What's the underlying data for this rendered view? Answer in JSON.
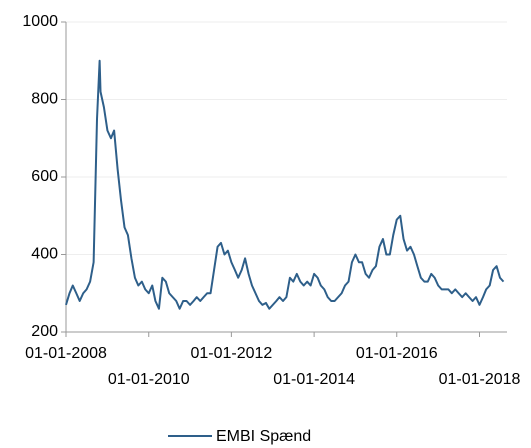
{
  "chart_data": {
    "type": "line",
    "series": [
      {
        "name": "EMBI Spænd",
        "color": "#2e5f8a",
        "x": [
          "2008-01-01",
          "2008-02-01",
          "2008-03-01",
          "2008-04-01",
          "2008-05-01",
          "2008-06-01",
          "2008-07-01",
          "2008-08-01",
          "2008-09-01",
          "2008-10-01",
          "2008-10-24",
          "2008-11-01",
          "2008-12-01",
          "2009-01-01",
          "2009-02-01",
          "2009-03-01",
          "2009-04-01",
          "2009-05-01",
          "2009-06-01",
          "2009-07-01",
          "2009-08-01",
          "2009-09-01",
          "2009-10-01",
          "2009-11-01",
          "2009-12-01",
          "2010-01-01",
          "2010-02-01",
          "2010-03-01",
          "2010-04-01",
          "2010-05-01",
          "2010-06-01",
          "2010-07-01",
          "2010-08-01",
          "2010-09-01",
          "2010-10-01",
          "2010-11-01",
          "2010-12-01",
          "2011-01-01",
          "2011-02-01",
          "2011-03-01",
          "2011-04-01",
          "2011-05-01",
          "2011-06-01",
          "2011-07-01",
          "2011-08-01",
          "2011-09-01",
          "2011-10-01",
          "2011-11-01",
          "2011-12-01",
          "2012-01-01",
          "2012-02-01",
          "2012-03-01",
          "2012-04-01",
          "2012-05-01",
          "2012-06-01",
          "2012-07-01",
          "2012-08-01",
          "2012-09-01",
          "2012-10-01",
          "2012-11-01",
          "2012-12-01",
          "2013-01-01",
          "2013-02-01",
          "2013-03-01",
          "2013-04-01",
          "2013-05-01",
          "2013-06-01",
          "2013-07-01",
          "2013-08-01",
          "2013-09-01",
          "2013-10-01",
          "2013-11-01",
          "2013-12-01",
          "2014-01-01",
          "2014-02-01",
          "2014-03-01",
          "2014-04-01",
          "2014-05-01",
          "2014-06-01",
          "2014-07-01",
          "2014-08-01",
          "2014-09-01",
          "2014-10-01",
          "2014-11-01",
          "2014-12-01",
          "2015-01-01",
          "2015-02-01",
          "2015-03-01",
          "2015-04-01",
          "2015-05-01",
          "2015-06-01",
          "2015-07-01",
          "2015-08-01",
          "2015-09-01",
          "2015-10-01",
          "2015-11-01",
          "2015-12-01",
          "2016-01-01",
          "2016-02-01",
          "2016-03-01",
          "2016-04-01",
          "2016-05-01",
          "2016-06-01",
          "2016-07-01",
          "2016-08-01",
          "2016-09-01",
          "2016-10-01",
          "2016-11-01",
          "2016-12-01",
          "2017-01-01",
          "2017-02-01",
          "2017-03-01",
          "2017-04-01",
          "2017-05-01",
          "2017-06-01",
          "2017-07-01",
          "2017-08-01",
          "2017-09-01",
          "2017-10-01",
          "2017-11-01",
          "2017-12-01",
          "2018-01-01",
          "2018-02-01",
          "2018-03-01",
          "2018-04-01",
          "2018-05-01",
          "2018-06-01",
          "2018-07-01",
          "2018-08-01"
        ],
        "values": [
          270,
          300,
          320,
          300,
          280,
          300,
          310,
          330,
          380,
          750,
          900,
          820,
          780,
          720,
          700,
          720,
          620,
          540,
          470,
          450,
          390,
          340,
          320,
          330,
          310,
          300,
          320,
          280,
          260,
          340,
          330,
          300,
          290,
          280,
          260,
          280,
          280,
          270,
          280,
          290,
          280,
          290,
          300,
          300,
          360,
          420,
          430,
          400,
          410,
          380,
          360,
          340,
          360,
          390,
          350,
          320,
          300,
          280,
          270,
          275,
          260,
          270,
          280,
          290,
          280,
          290,
          340,
          330,
          350,
          330,
          320,
          330,
          320,
          350,
          340,
          320,
          310,
          290,
          280,
          280,
          290,
          300,
          320,
          330,
          380,
          400,
          380,
          380,
          350,
          340,
          360,
          370,
          420,
          440,
          400,
          400,
          450,
          490,
          500,
          440,
          410,
          420,
          400,
          370,
          340,
          330,
          330,
          350,
          340,
          320,
          310,
          310,
          310,
          300,
          310,
          300,
          290,
          300,
          290,
          280,
          290,
          270,
          290,
          310,
          320,
          360,
          370,
          340,
          330
        ]
      }
    ],
    "xlim": [
      "2008-01-01",
      "2018-09-01"
    ],
    "xticks": [
      {
        "value": "2008-01-01",
        "label": "01-01-2008"
      },
      {
        "value": "2010-01-01",
        "label": "01-01-2010"
      },
      {
        "value": "2012-01-01",
        "label": "01-01-2012"
      },
      {
        "value": "2014-01-01",
        "label": "01-01-2014"
      },
      {
        "value": "2016-01-01",
        "label": "01-01-2016"
      },
      {
        "value": "2018-01-01",
        "label": "01-01-2018"
      }
    ],
    "ylim": [
      200,
      1000
    ],
    "yticks": [
      200,
      400,
      600,
      800,
      1000
    ],
    "grid": true
  }
}
